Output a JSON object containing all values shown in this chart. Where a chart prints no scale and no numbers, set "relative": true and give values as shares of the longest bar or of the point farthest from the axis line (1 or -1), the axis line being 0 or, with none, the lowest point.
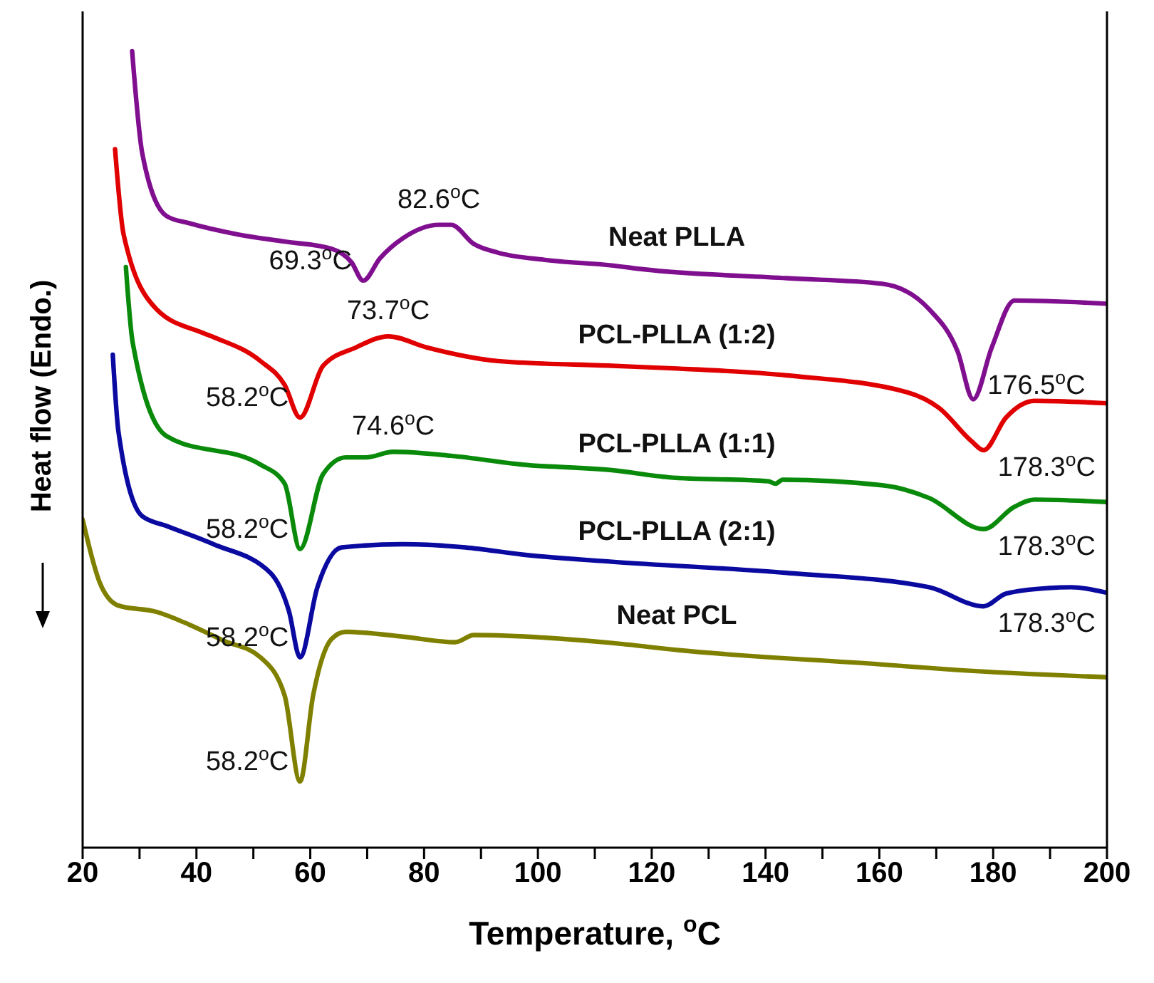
{
  "chart_data": {
    "type": "line",
    "relative": true,
    "xlabel": "Temperature, $^{o}$C",
    "ylabel": "Heat flow (Endo.)",
    "xlim": [
      20,
      200
    ],
    "xticks": [
      20,
      {
        "value": 30,
        "label": null
      },
      40,
      {
        "value": 50,
        "label": null
      },
      60,
      {
        "value": 70,
        "label": null
      },
      80,
      {
        "value": 90,
        "label": null
      },
      100,
      {
        "value": 110,
        "label": null
      },
      120,
      {
        "value": 130,
        "label": null
      },
      140,
      {
        "value": 150,
        "label": null
      },
      160,
      {
        "value": 170,
        "label": null
      },
      180,
      {
        "value": 190,
        "label": null
      },
      200
    ],
    "series": [
      {
        "name": "Neat PLLA",
        "color": "#800f8f",
        "x": [
          28.7,
          30.5,
          34.75,
          38.75,
          47.25,
          55.5,
          63.75,
          67.25,
          69.3,
          72.25,
          76.25,
          82.6,
          84.75,
          88.75,
          93,
          101.25,
          113,
          118.75,
          143.75,
          160.5,
          168.75,
          173.75,
          176.5,
          179.75,
          183.75,
          200
        ],
        "values": [
          1.0,
          0.871,
          0.793,
          0.784,
          0.77,
          0.761,
          0.752,
          0.735,
          0.712,
          0.74,
          0.765,
          0.782,
          0.782,
          0.758,
          0.747,
          0.738,
          0.731,
          0.726,
          0.715,
          0.708,
          0.676,
          0.623,
          0.563,
          0.628,
          0.687,
          0.683
        ]
      },
      {
        "name": "PCL-PLLA (1:2)",
        "color": "#e00000",
        "x": [
          25.7,
          27.2,
          33,
          41.25,
          43,
          51.25,
          55.5,
          58.2,
          62.25,
          68,
          73.7,
          80.5,
          93,
          113,
          123,
          143.75,
          164.75,
          170.5,
          176.25,
          178.3,
          182.25,
          187.25,
          200
        ],
        "values": [
          0.877,
          0.77,
          0.676,
          0.646,
          0.641,
          0.611,
          0.581,
          0.54,
          0.605,
          0.628,
          0.642,
          0.628,
          0.611,
          0.605,
          0.602,
          0.593,
          0.572,
          0.552,
          0.51,
          0.499,
          0.54,
          0.561,
          0.558
        ]
      },
      {
        "name": "PCL-PLLA (1:1)",
        "color": "#0a8a0a",
        "x": [
          27.6,
          28.8,
          34.7,
          51.25,
          55.5,
          58.2,
          62.25,
          66.25,
          69.75,
          74.6,
          84.75,
          97.25,
          113,
          123,
          140.5,
          141.75,
          143,
          160.5,
          168.75,
          178.3,
          183.75,
          187.25,
          200
        ],
        "values": [
          0.729,
          0.634,
          0.517,
          0.481,
          0.457,
          0.375,
          0.469,
          0.49,
          0.49,
          0.497,
          0.492,
          0.481,
          0.474,
          0.465,
          0.46,
          0.457,
          0.462,
          0.455,
          0.439,
          0.4,
          0.428,
          0.437,
          0.434
        ]
      },
      {
        "name": "PCL-PLLA (2:1)",
        "color": "#0a0aa0",
        "x": [
          25.3,
          26.3,
          30.5,
          34.7,
          43,
          53,
          56.25,
          58.2,
          61.25,
          65.5,
          76.25,
          87.25,
          97.25,
          113,
          143.75,
          168.75,
          178.3,
          182.25,
          189.75,
          193.75,
          200
        ],
        "values": [
          0.619,
          0.522,
          0.416,
          0.404,
          0.381,
          0.345,
          0.297,
          0.239,
          0.327,
          0.377,
          0.381,
          0.377,
          0.368,
          0.359,
          0.345,
          0.327,
          0.303,
          0.319,
          0.326,
          0.327,
          0.32
        ]
      },
      {
        "name": "Neat PCL",
        "color": "#808000",
        "x": [
          20,
          23,
          26.3,
          33,
          38.75,
          44.75,
          51.25,
          55.5,
          58.2,
          60.5,
          63.75,
          66.25,
          76.25,
          85.5,
          88.75,
          113,
          124.75,
          160.5,
          173.75,
          200
        ],
        "values": [
          0.412,
          0.333,
          0.304,
          0.296,
          0.28,
          0.26,
          0.239,
          0.191,
          0.083,
          0.191,
          0.262,
          0.271,
          0.265,
          0.258,
          0.267,
          0.257,
          0.248,
          0.23,
          0.223,
          0.214
        ]
      }
    ],
    "annotations": [
      {
        "text": "69.3$^{o}$C",
        "x": 69.3,
        "y": 0.712
      },
      {
        "text": "82.6$^{o}$C",
        "x": 82.6,
        "y": 0.782
      },
      {
        "text": "176.5$^{o}$C",
        "x": 176.5,
        "y": 0.563
      },
      {
        "text": "58.2$^{o}$C",
        "x": 58.2,
        "y": 0.54
      },
      {
        "text": "73.7$^{o}$C",
        "x": 73.7,
        "y": 0.642
      },
      {
        "text": "178.3$^{o}$C",
        "x": 178.3,
        "y": 0.499
      },
      {
        "text": "58.2$^{o}$C",
        "x": 58.2,
        "y": 0.375
      },
      {
        "text": "74.6$^{o}$C",
        "x": 74.6,
        "y": 0.497
      },
      {
        "text": "178.3$^{o}$C",
        "x": 178.3,
        "y": 0.4
      },
      {
        "text": "58.2$^{o}$C",
        "x": 58.2,
        "y": 0.239
      },
      {
        "text": "178.3$^{o}$C",
        "x": 178.3,
        "y": 0.303
      },
      {
        "text": "58.2$^{o}$C",
        "x": 58.2,
        "y": 0.083
      }
    ]
  }
}
